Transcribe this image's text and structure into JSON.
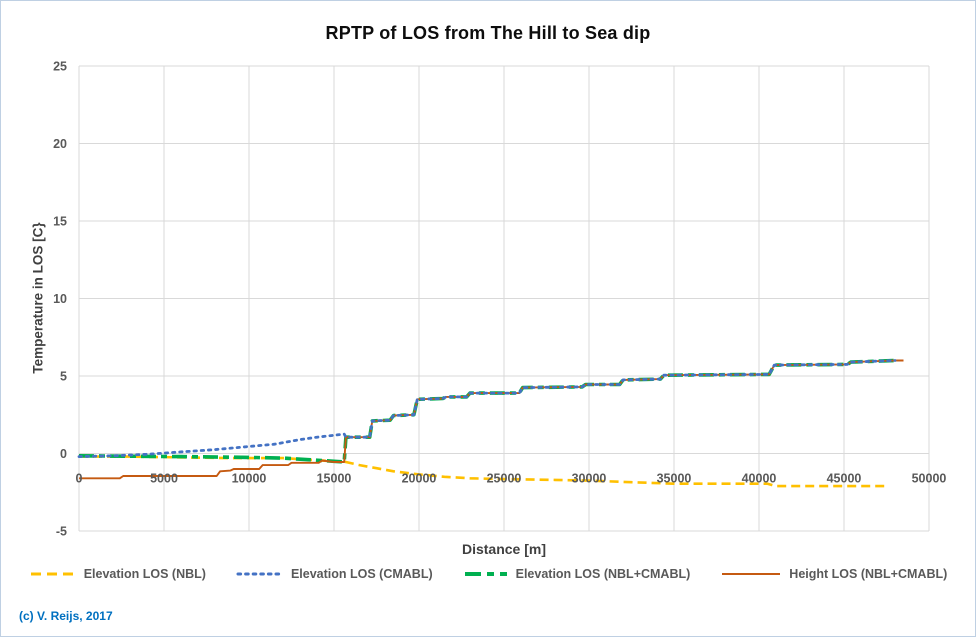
{
  "copyright": "(c) V. Reijs, 2017",
  "colors": {
    "grid": "#d9d9d9",
    "tick_text": "#595959",
    "axis_title_text": "#404040",
    "title_text": "#0d0d0d",
    "copyright_text": "#0070C0",
    "frame_border": "#bfd0e3",
    "series_nbl": "#FFC000",
    "series_cmabl": "#4472C4",
    "series_nbl_cmabl": "#00B050",
    "series_height": "#C55A11"
  },
  "chart_data": {
    "type": "line",
    "title": "RPTP of LOS from The Hill to Sea dip",
    "xlabel": "Distance [m]",
    "ylabel": "Temperature in LOS [C}",
    "xlim": [
      0,
      50000
    ],
    "ylim": [
      -5,
      25
    ],
    "x_ticks": [
      0,
      5000,
      10000,
      15000,
      20000,
      25000,
      30000,
      35000,
      40000,
      45000,
      50000
    ],
    "y_ticks": [
      -5,
      0,
      5,
      10,
      15,
      20,
      25
    ],
    "grid": true,
    "legend_position": "bottom",
    "annotation": "(c) V. Reijs, 2017",
    "series": [
      {
        "name": "Elevation LOS (NBL)",
        "color": "#FFC000",
        "style": "dashed",
        "points": [
          [
            0,
            -0.2
          ],
          [
            3000,
            -0.2
          ],
          [
            6000,
            -0.25
          ],
          [
            9000,
            -0.3
          ],
          [
            12000,
            -0.3
          ],
          [
            13500,
            -0.4
          ],
          [
            15000,
            -0.5
          ],
          [
            15700,
            -0.55
          ],
          [
            16500,
            -0.75
          ],
          [
            17500,
            -0.95
          ],
          [
            18500,
            -1.15
          ],
          [
            20000,
            -1.35
          ],
          [
            21500,
            -1.5
          ],
          [
            23000,
            -1.6
          ],
          [
            25000,
            -1.65
          ],
          [
            28000,
            -1.7
          ],
          [
            30000,
            -1.75
          ],
          [
            32500,
            -1.85
          ],
          [
            35000,
            -1.95
          ],
          [
            40500,
            -1.95
          ],
          [
            41000,
            -2.1
          ],
          [
            47500,
            -2.1
          ]
        ]
      },
      {
        "name": "Elevation LOS (CMABL)",
        "color": "#4472C4",
        "style": "dotted",
        "points": [
          [
            0,
            -0.2
          ],
          [
            2000,
            -0.15
          ],
          [
            4000,
            -0.05
          ],
          [
            6000,
            0.1
          ],
          [
            8000,
            0.25
          ],
          [
            10000,
            0.45
          ],
          [
            11500,
            0.6
          ],
          [
            13000,
            0.9
          ],
          [
            14000,
            1.05
          ],
          [
            15600,
            1.25
          ],
          [
            15700,
            1.05
          ],
          [
            17100,
            1.05
          ],
          [
            17250,
            2.1
          ],
          [
            18300,
            2.15
          ],
          [
            18500,
            2.45
          ],
          [
            19700,
            2.5
          ],
          [
            19900,
            3.5
          ],
          [
            21400,
            3.55
          ],
          [
            21600,
            3.65
          ],
          [
            22800,
            3.65
          ],
          [
            23000,
            3.9
          ],
          [
            25900,
            3.9
          ],
          [
            26100,
            4.25
          ],
          [
            29600,
            4.3
          ],
          [
            29800,
            4.45
          ],
          [
            31800,
            4.45
          ],
          [
            32000,
            4.75
          ],
          [
            34200,
            4.8
          ],
          [
            34400,
            5.05
          ],
          [
            40600,
            5.1
          ],
          [
            40900,
            5.7
          ],
          [
            45200,
            5.75
          ],
          [
            45400,
            5.9
          ],
          [
            48000,
            6.0
          ]
        ]
      },
      {
        "name": "Elevation LOS (NBL+CMABL)",
        "color": "#00B050",
        "style": "long-dash",
        "points": [
          [
            0,
            -0.15
          ],
          [
            6000,
            -0.2
          ],
          [
            10000,
            -0.25
          ],
          [
            12000,
            -0.3
          ],
          [
            13500,
            -0.4
          ],
          [
            15000,
            -0.5
          ],
          [
            15600,
            -0.55
          ],
          [
            15700,
            1.05
          ],
          [
            17100,
            1.05
          ],
          [
            17250,
            2.1
          ],
          [
            18300,
            2.15
          ],
          [
            18500,
            2.45
          ],
          [
            19700,
            2.5
          ],
          [
            19900,
            3.5
          ],
          [
            21400,
            3.55
          ],
          [
            21600,
            3.65
          ],
          [
            22800,
            3.65
          ],
          [
            23000,
            3.9
          ],
          [
            25900,
            3.9
          ],
          [
            26100,
            4.25
          ],
          [
            29600,
            4.3
          ],
          [
            29800,
            4.45
          ],
          [
            31800,
            4.45
          ],
          [
            32000,
            4.75
          ],
          [
            34200,
            4.8
          ],
          [
            34400,
            5.05
          ],
          [
            40600,
            5.1
          ],
          [
            40900,
            5.7
          ],
          [
            45200,
            5.75
          ],
          [
            45400,
            5.9
          ],
          [
            48000,
            6.0
          ]
        ]
      },
      {
        "name": "Height LOS (NBL+CMABL)",
        "color": "#C55A11",
        "style": "solid",
        "points": [
          [
            0,
            -1.6
          ],
          [
            2400,
            -1.6
          ],
          [
            2600,
            -1.45
          ],
          [
            8100,
            -1.45
          ],
          [
            8300,
            -1.15
          ],
          [
            8900,
            -1.1
          ],
          [
            9100,
            -1.0
          ],
          [
            10600,
            -1.0
          ],
          [
            10800,
            -0.75
          ],
          [
            12300,
            -0.75
          ],
          [
            12500,
            -0.6
          ],
          [
            14100,
            -0.6
          ],
          [
            14300,
            -0.45
          ],
          [
            15000,
            -0.55
          ],
          [
            15600,
            -0.55
          ],
          [
            15700,
            1.05
          ],
          [
            17100,
            1.05
          ],
          [
            17250,
            2.1
          ],
          [
            18300,
            2.15
          ],
          [
            18500,
            2.45
          ],
          [
            19700,
            2.5
          ],
          [
            19900,
            3.5
          ],
          [
            21400,
            3.55
          ],
          [
            21600,
            3.65
          ],
          [
            22800,
            3.65
          ],
          [
            23000,
            3.9
          ],
          [
            25900,
            3.9
          ],
          [
            26100,
            4.25
          ],
          [
            29600,
            4.3
          ],
          [
            29800,
            4.45
          ],
          [
            31800,
            4.45
          ],
          [
            32000,
            4.75
          ],
          [
            34200,
            4.8
          ],
          [
            34400,
            5.05
          ],
          [
            40600,
            5.1
          ],
          [
            40900,
            5.7
          ],
          [
            45200,
            5.75
          ],
          [
            45400,
            5.9
          ],
          [
            48000,
            6.0
          ],
          [
            48500,
            6.0
          ]
        ]
      }
    ]
  }
}
